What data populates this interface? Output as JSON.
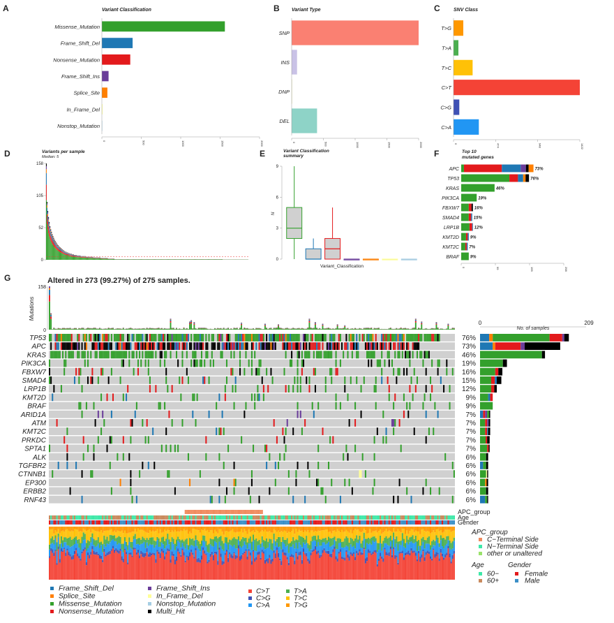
{
  "colors": {
    "Frame_Shift_Del": "#1f78b4",
    "Splice_Site": "#ff7f00",
    "Missense_Mutation": "#33a02c",
    "Nonsense_Mutation": "#e31a1c",
    "Frame_Shift_Ins": "#6a3d9a",
    "In_Frame_Del": "#ffff99",
    "Nonstop_Mutation": "#a6cee3",
    "Multi_Hit": "#000000",
    "SNP": "#fa8072",
    "INS": "#c9c2e6",
    "DNP": "#e3e3a6",
    "DEL": "#8ed3c7",
    "C>T": "#f44336",
    "C>G": "#3f51b5",
    "C>A": "#2196f3",
    "T>A": "#4caf50",
    "T>C": "#ffc107",
    "T>G": "#ff9800",
    "cterm": "#f08a5d",
    "nterm": "#3ee8a8",
    "other": "#9ae26b",
    "age60minus": "#3ee8a8",
    "age60plus": "#c98a5d",
    "female": "#e31a1c",
    "male": "#3a8fc7",
    "grey": "#d0d0d0"
  },
  "chart_data": [
    {
      "id": "A",
      "panel_label": "A",
      "type": "bar",
      "orientation": "horizontal",
      "title": "Variant Classification",
      "categories": [
        "Missense_Mutation",
        "Frame_Shift_Del",
        "Nonsense_Mutation",
        "Frame_Shift_Ins",
        "Splice_Site",
        "In_Frame_Del",
        "Nonstop_Mutation"
      ],
      "values": [
        1560,
        390,
        360,
        85,
        70,
        8,
        3
      ],
      "xlim": [
        0,
        2000
      ],
      "xticks": [
        "0",
        "500",
        "1000",
        "1500",
        "2000"
      ]
    },
    {
      "id": "B",
      "panel_label": "B",
      "type": "bar",
      "orientation": "horizontal",
      "title": "Variant Type",
      "categories": [
        "SNP",
        "INS",
        "DNP",
        "DEL"
      ],
      "values": [
        2000,
        85,
        5,
        400
      ],
      "xlim": [
        0,
        2000
      ],
      "xticks": [
        "0",
        "500",
        "1000",
        "1500",
        "2000"
      ]
    },
    {
      "id": "C",
      "panel_label": "C",
      "type": "bar",
      "orientation": "horizontal",
      "title": "SNV Class",
      "categories": [
        "T>G",
        "T>A",
        "T>C",
        "C>T",
        "C>G",
        "C>A"
      ],
      "values": [
        110,
        55,
        215,
        1422,
        65,
        285
      ],
      "xlim": [
        0,
        1422
      ],
      "xticks": [
        "0",
        "474",
        "948",
        "1422"
      ]
    },
    {
      "id": "D",
      "panel_label": "D",
      "type": "bar",
      "title": "Variants per sample",
      "subtitle": "Median: 5",
      "ylim": [
        0,
        158
      ],
      "yticks": [
        "0",
        "52",
        "105",
        "158"
      ],
      "n_samples": 275,
      "values_sorted": [
        158,
        95,
        80,
        70,
        62,
        55,
        50,
        46,
        42,
        39,
        36,
        33,
        31,
        29,
        27,
        25,
        24,
        22,
        21,
        20,
        19,
        18,
        17,
        16,
        15,
        14,
        13,
        13,
        12,
        12,
        11,
        11,
        10,
        10,
        10,
        9,
        9,
        9,
        8,
        8,
        8,
        8,
        7,
        7,
        7,
        7,
        7,
        6,
        6,
        6,
        6,
        6,
        6,
        6,
        5,
        5,
        5,
        5,
        5,
        5,
        5,
        5,
        5,
        5,
        4,
        4,
        4,
        4,
        4,
        4,
        4,
        4,
        4,
        4,
        3,
        3,
        3,
        3,
        3,
        3,
        3,
        3,
        3,
        3,
        2,
        2,
        2,
        2,
        2,
        2,
        2,
        2,
        2,
        1,
        1,
        1,
        1,
        1,
        1,
        1
      ]
    },
    {
      "id": "E",
      "panel_label": "E",
      "type": "box",
      "title": "Variant Classification",
      "subtitle": "summary",
      "ylabel": "N",
      "xlabel": "Variant_Classification",
      "ylim": [
        0,
        9
      ],
      "yticks": [
        "0",
        "3",
        "6",
        "9"
      ],
      "boxes": [
        {
          "name": "Missense_Mutation",
          "min": 0,
          "q1": 2,
          "median": 3,
          "q3": 5,
          "max": 9
        },
        {
          "name": "Frame_Shift_Del",
          "min": 0,
          "q1": 0,
          "median": 0,
          "q3": 1,
          "max": 2
        },
        {
          "name": "Nonsense_Mutation",
          "min": 0,
          "q1": 0,
          "median": 1,
          "q3": 2,
          "max": 5
        },
        {
          "name": "Frame_Shift_Ins",
          "min": 0,
          "q1": 0,
          "median": 0,
          "q3": 0,
          "max": 0
        },
        {
          "name": "Splice_Site",
          "min": 0,
          "q1": 0,
          "median": 0,
          "q3": 0,
          "max": 0
        },
        {
          "name": "In_Frame_Del",
          "min": 0,
          "q1": 0,
          "median": 0,
          "q3": 0,
          "max": 0
        },
        {
          "name": "Nonstop_Mutation",
          "min": 0,
          "q1": 0,
          "median": 0,
          "q3": 0,
          "max": 0
        }
      ]
    },
    {
      "id": "F",
      "panel_label": "F",
      "type": "bar",
      "orientation": "horizontal",
      "stacked": true,
      "title": "Top 10",
      "subtitle": "mutated genes",
      "xlim": [
        0,
        298
      ],
      "xticks": [
        "0",
        "99",
        "199",
        "298"
      ],
      "genes": [
        {
          "gene": "APC",
          "pct": "73%",
          "segments": [
            [
              "Missense_Mutation",
              8
            ],
            [
              "Nonsense_Mutation",
              110
            ],
            [
              "Frame_Shift_Del",
              55
            ],
            [
              "Frame_Shift_Ins",
              15
            ],
            [
              "Multi_Hit",
              8
            ],
            [
              "Splice_Site",
              14
            ]
          ]
        },
        {
          "gene": "TP53",
          "pct": "76%",
          "segments": [
            [
              "Missense_Mutation",
              140
            ],
            [
              "Nonsense_Mutation",
              25
            ],
            [
              "Frame_Shift_Del",
              15
            ],
            [
              "Splice_Site",
              7
            ],
            [
              "Multi_Hit",
              10
            ]
          ]
        },
        {
          "gene": "KRAS",
          "pct": "46%",
          "segments": [
            [
              "Missense_Mutation",
              97
            ]
          ]
        },
        {
          "gene": "PIK3CA",
          "pct": "19%",
          "segments": [
            [
              "Missense_Mutation",
              45
            ]
          ]
        },
        {
          "gene": "FBXW7",
          "pct": "16%",
          "segments": [
            [
              "Missense_Mutation",
              22
            ],
            [
              "Nonsense_Mutation",
              8
            ],
            [
              "Multi_Hit",
              4
            ]
          ]
        },
        {
          "gene": "SMAD4",
          "pct": "15%",
          "segments": [
            [
              "Missense_Mutation",
              22
            ],
            [
              "Nonsense_Mutation",
              7
            ],
            [
              "Frame_Shift_Del",
              3
            ]
          ]
        },
        {
          "gene": "LRP1B",
          "pct": "12%",
          "segments": [
            [
              "Missense_Mutation",
              24
            ],
            [
              "Nonsense_Mutation",
              8
            ],
            [
              "Frame_Shift_Del",
              2
            ]
          ]
        },
        {
          "gene": "KMT2D",
          "pct": "9%",
          "segments": [
            [
              "Missense_Mutation",
              14
            ],
            [
              "Nonsense_Mutation",
              5
            ],
            [
              "Frame_Shift_Del",
              3
            ]
          ]
        },
        {
          "gene": "KMT2C",
          "pct": "7%",
          "segments": [
            [
              "Missense_Mutation",
              12
            ],
            [
              "Nonsense_Mutation",
              4
            ],
            [
              "Frame_Shift_Del",
              3
            ]
          ]
        },
        {
          "gene": "BRAF",
          "pct": "9%",
          "segments": [
            [
              "Missense_Mutation",
              22
            ]
          ]
        }
      ]
    },
    {
      "id": "G",
      "panel_label": "G",
      "type": "heatmap",
      "title": "Altered in 273 (99.27%) of 275 samples.",
      "ylabel": "Mutations",
      "top_ylim": [
        0,
        158
      ],
      "top_yticks": [
        "0",
        "158"
      ],
      "right_axis_label": "No. of samples",
      "right_xlim": [
        0,
        209
      ],
      "right_xticks": [
        "0",
        "209"
      ],
      "genes": [
        {
          "gene": "TP53",
          "pct": "76%",
          "freq": 0.76,
          "segs": [
            [
              "Frame_Shift_Del",
              18
            ],
            [
              "Splice_Site",
              7
            ],
            [
              "Missense_Mutation",
              112
            ],
            [
              "Nonsense_Mutation",
              25
            ],
            [
              "Frame_Shift_Ins",
              4
            ],
            [
              "Multi_Hit",
              9
            ]
          ]
        },
        {
          "gene": "APC",
          "pct": "73%",
          "freq": 0.73,
          "segs": [
            [
              "Frame_Shift_Del",
              25
            ],
            [
              "Splice_Site",
              5
            ],
            [
              "Nonsense_Mutation",
              50
            ],
            [
              "Frame_Shift_Ins",
              8
            ],
            [
              "Multi_Hit",
              70
            ]
          ]
        },
        {
          "gene": "KRAS",
          "pct": "46%",
          "freq": 0.46,
          "segs": [
            [
              "Missense_Mutation",
              122
            ],
            [
              "Multi_Hit",
              6
            ]
          ]
        },
        {
          "gene": "PIK3CA",
          "pct": "19%",
          "freq": 0.19,
          "segs": [
            [
              "Missense_Mutation",
              45
            ],
            [
              "Multi_Hit",
              8
            ]
          ]
        },
        {
          "gene": "FBXW7",
          "pct": "16%",
          "freq": 0.16,
          "segs": [
            [
              "Missense_Mutation",
              30
            ],
            [
              "Nonsense_Mutation",
              6
            ],
            [
              "Multi_Hit",
              8
            ]
          ]
        },
        {
          "gene": "SMAD4",
          "pct": "15%",
          "freq": 0.15,
          "segs": [
            [
              "Missense_Mutation",
              22
            ],
            [
              "Nonsense_Mutation",
              7
            ],
            [
              "Frame_Shift_Del",
              4
            ],
            [
              "Multi_Hit",
              9
            ]
          ]
        },
        {
          "gene": "LRP1B",
          "pct": "12%",
          "freq": 0.12,
          "segs": [
            [
              "Missense_Mutation",
              22
            ],
            [
              "Nonsense_Mutation",
              6
            ],
            [
              "Multi_Hit",
              5
            ]
          ]
        },
        {
          "gene": "KMT2D",
          "pct": "9%",
          "freq": 0.09,
          "segs": [
            [
              "Missense_Mutation",
              16
            ],
            [
              "Frame_Shift_Del",
              4
            ],
            [
              "Nonsense_Mutation",
              5
            ]
          ]
        },
        {
          "gene": "BRAF",
          "pct": "9%",
          "freq": 0.09,
          "segs": [
            [
              "Missense_Mutation",
              25
            ]
          ]
        },
        {
          "gene": "ARID1A",
          "pct": "7%",
          "freq": 0.07,
          "segs": [
            [
              "Frame_Shift_Del",
              6
            ],
            [
              "Nonsense_Mutation",
              4
            ],
            [
              "Frame_Shift_Ins",
              4
            ],
            [
              "Missense_Mutation",
              4
            ],
            [
              "Multi_Hit",
              2
            ]
          ]
        },
        {
          "gene": "ATM",
          "pct": "7%",
          "freq": 0.07,
          "segs": [
            [
              "Missense_Mutation",
              10
            ],
            [
              "Nonsense_Mutation",
              4
            ],
            [
              "Frame_Shift_Ins",
              3
            ],
            [
              "Multi_Hit",
              3
            ]
          ]
        },
        {
          "gene": "KMT2C",
          "pct": "7%",
          "freq": 0.07,
          "segs": [
            [
              "Missense_Mutation",
              10
            ],
            [
              "Nonsense_Mutation",
              4
            ],
            [
              "Frame_Shift_Del",
              2
            ],
            [
              "Multi_Hit",
              4
            ]
          ]
        },
        {
          "gene": "PRKDC",
          "pct": "7%",
          "freq": 0.07,
          "segs": [
            [
              "Missense_Mutation",
              11
            ],
            [
              "Nonsense_Mutation",
              3
            ],
            [
              "Multi_Hit",
              5
            ]
          ]
        },
        {
          "gene": "SPTA1",
          "pct": "7%",
          "freq": 0.07,
          "segs": [
            [
              "Missense_Mutation",
              14
            ],
            [
              "Nonsense_Mutation",
              3
            ],
            [
              "Multi_Hit",
              2
            ]
          ]
        },
        {
          "gene": "ALK",
          "pct": "6%",
          "freq": 0.06,
          "segs": [
            [
              "Missense_Mutation",
              12
            ],
            [
              "Multi_Hit",
              4
            ]
          ]
        },
        {
          "gene": "TGFBR2",
          "pct": "6%",
          "freq": 0.06,
          "segs": [
            [
              "Frame_Shift_Del",
              6
            ],
            [
              "Missense_Mutation",
              6
            ],
            [
              "Multi_Hit",
              4
            ]
          ]
        },
        {
          "gene": "CTNNB1",
          "pct": "6%",
          "freq": 0.06,
          "segs": [
            [
              "Missense_Mutation",
              12
            ],
            [
              "In_Frame_Del",
              2
            ],
            [
              "Multi_Hit",
              2
            ]
          ]
        },
        {
          "gene": "EP300",
          "pct": "6%",
          "freq": 0.06,
          "segs": [
            [
              "Missense_Mutation",
              10
            ],
            [
              "Splice_Site",
              3
            ],
            [
              "Multi_Hit",
              3
            ]
          ]
        },
        {
          "gene": "ERBB2",
          "pct": "6%",
          "freq": 0.06,
          "segs": [
            [
              "Missense_Mutation",
              12
            ],
            [
              "Multi_Hit",
              4
            ]
          ]
        },
        {
          "gene": "RNF43",
          "pct": "6%",
          "freq": 0.06,
          "segs": [
            [
              "Frame_Shift_Del",
              10
            ],
            [
              "Missense_Mutation",
              4
            ],
            [
              "Multi_Hit",
              2
            ]
          ]
        }
      ],
      "annotation_tracks": [
        "APC_group",
        "Age",
        "Gender"
      ],
      "titv_fractions": {
        "C>T": 0.45,
        "C>G": 0.05,
        "C>A": 0.15,
        "T>A": 0.12,
        "T>C": 0.15,
        "T>G": 0.08
      }
    }
  ],
  "legend": {
    "variant_items": [
      "Frame_Shift_Del",
      "Frame_Shift_Ins",
      "Splice_Site",
      "In_Frame_Del",
      "Missense_Mutation",
      "Nonstop_Mutation",
      "Nonsense_Mutation",
      "Multi_Hit"
    ],
    "snv_items": [
      "C>T",
      "T>A",
      "C>G",
      "T>C",
      "C>A",
      "T>G"
    ],
    "apc_group": {
      "title": "APC_group",
      "items": [
        "C−Terminal Side",
        "N−Terminal Side",
        "other or unaltered"
      ]
    },
    "age": {
      "title": "Age",
      "items": [
        "60−",
        "60+"
      ]
    },
    "gender": {
      "title": "Gender",
      "items": [
        "Female",
        "Male"
      ]
    }
  }
}
